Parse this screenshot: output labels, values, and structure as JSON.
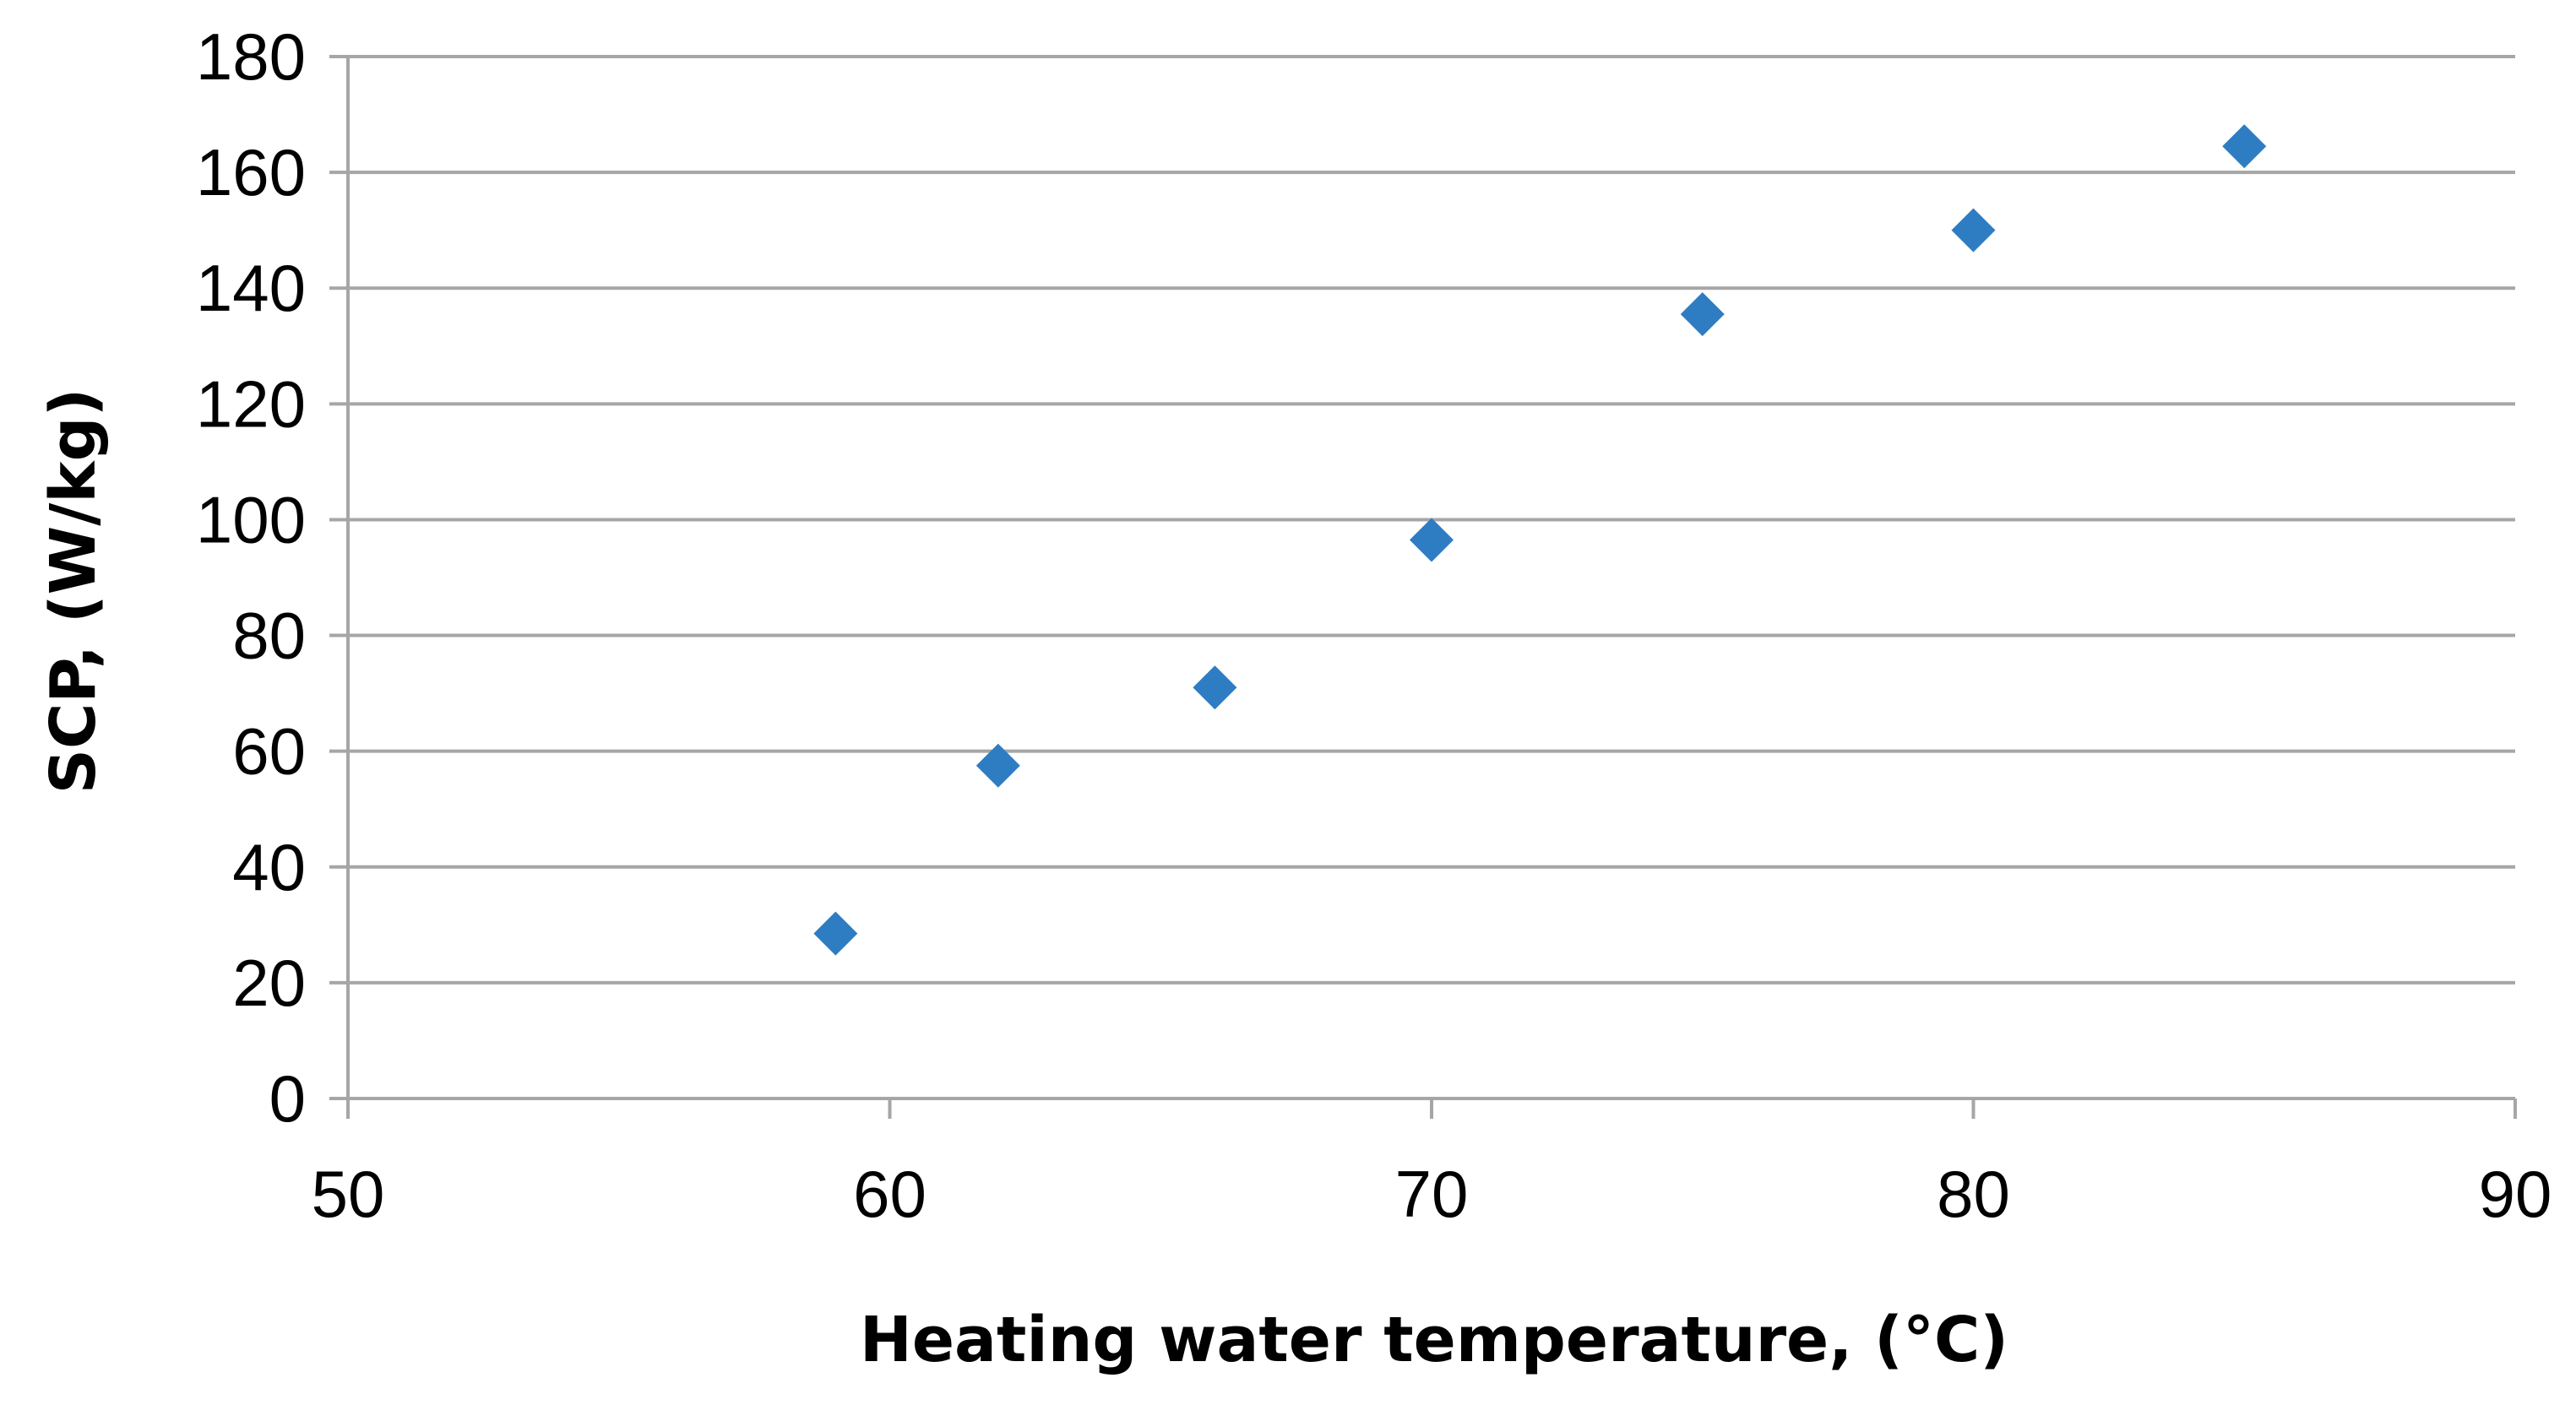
{
  "chart_data": {
    "type": "scatter",
    "title": "",
    "xlabel": "Heating water temperature, (°C)",
    "ylabel": "SCP, (W/kg)",
    "xlim": [
      50,
      90
    ],
    "ylim": [
      0,
      180
    ],
    "xticks": [
      50,
      60,
      70,
      80,
      90
    ],
    "yticks": [
      0,
      20,
      40,
      60,
      80,
      100,
      120,
      140,
      160,
      180
    ],
    "grid": "horizontal",
    "legend": "none",
    "marker": "diamond",
    "colors": {
      "marker": "#2E7DC2",
      "grid": "#A6A6A6",
      "axis": "#A6A6A6"
    },
    "series": [
      {
        "name": "SCP",
        "x": [
          59,
          62,
          66,
          70,
          75,
          80,
          85
        ],
        "y": [
          28.5,
          57.5,
          71,
          96.5,
          135.5,
          150,
          164.5
        ]
      }
    ]
  }
}
